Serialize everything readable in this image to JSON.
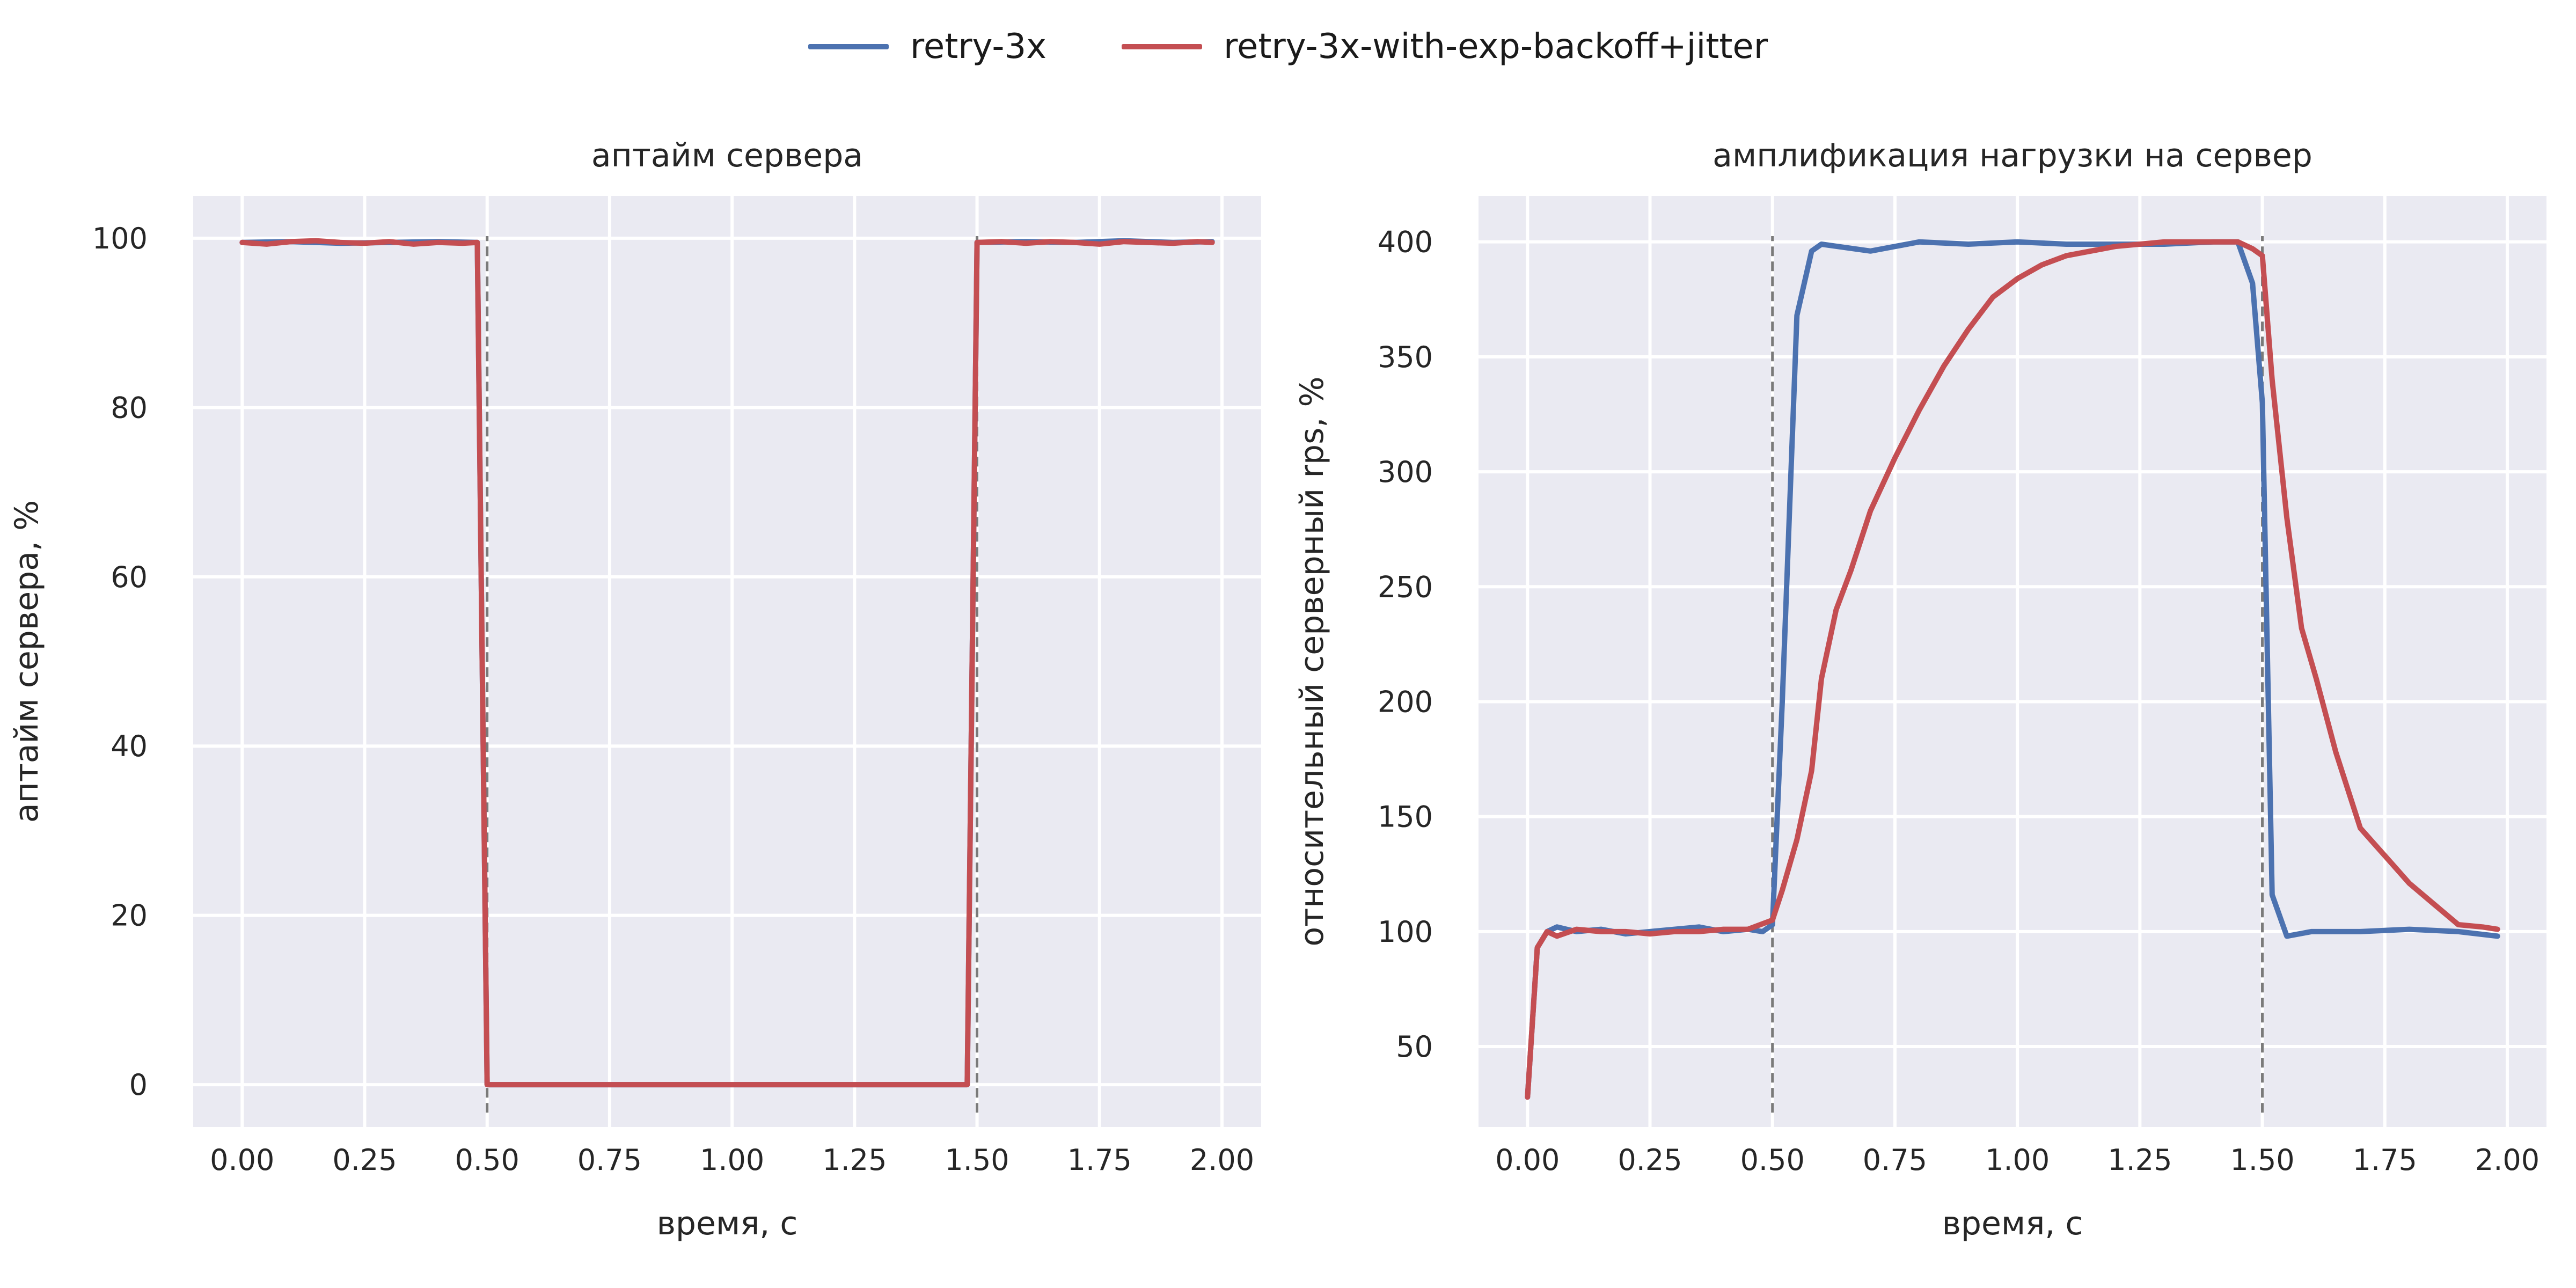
{
  "legend": {
    "items": [
      {
        "label": "retry-3x",
        "color": "#4c72b0"
      },
      {
        "label": "retry-3x-with-exp-backoff+jitter",
        "color": "#c44e52"
      }
    ],
    "placement": "top-center"
  },
  "chart_data": [
    {
      "type": "line",
      "title": "аптайм сервера",
      "xlabel": "время, с",
      "ylabel": "аптайм сервера, %",
      "xlim": [
        -0.1,
        2.08
      ],
      "ylim": [
        -5,
        105
      ],
      "xticks": [
        0.0,
        0.25,
        0.5,
        0.75,
        1.0,
        1.25,
        1.5,
        1.75,
        2.0
      ],
      "xtick_labels": [
        "0.00",
        "0.25",
        "0.50",
        "0.75",
        "1.00",
        "1.25",
        "1.50",
        "1.75",
        "2.00"
      ],
      "yticks": [
        0,
        20,
        40,
        60,
        80,
        100
      ],
      "ytick_labels": [
        "0",
        "20",
        "40",
        "60",
        "80",
        "100"
      ],
      "grid": true,
      "vlines": [
        0.5,
        1.5
      ],
      "series": [
        {
          "name": "retry-3x",
          "color": "#4c72b0",
          "x": [
            0.0,
            0.1,
            0.2,
            0.3,
            0.4,
            0.48,
            0.5,
            1.0,
            1.48,
            1.5,
            1.6,
            1.7,
            1.8,
            1.9,
            1.98
          ],
          "y": [
            99.5,
            99.6,
            99.4,
            99.5,
            99.6,
            99.5,
            0,
            0,
            0,
            99.5,
            99.6,
            99.5,
            99.7,
            99.5,
            99.6
          ]
        },
        {
          "name": "retry-3x-with-exp-backoff+jitter",
          "color": "#c44e52",
          "x": [
            0.0,
            0.05,
            0.1,
            0.15,
            0.2,
            0.25,
            0.3,
            0.35,
            0.4,
            0.45,
            0.48,
            0.5,
            1.0,
            1.48,
            1.5,
            1.55,
            1.6,
            1.65,
            1.7,
            1.75,
            1.8,
            1.85,
            1.9,
            1.95,
            1.98
          ],
          "y": [
            99.5,
            99.3,
            99.6,
            99.7,
            99.5,
            99.4,
            99.6,
            99.3,
            99.5,
            99.4,
            99.5,
            0,
            0,
            0,
            99.5,
            99.6,
            99.4,
            99.6,
            99.5,
            99.3,
            99.6,
            99.5,
            99.4,
            99.6,
            99.5
          ]
        }
      ]
    },
    {
      "type": "line",
      "title": "амплификация нагрузки на сервер",
      "xlabel": "время, с",
      "ylabel": "относительный серверный rps, %",
      "xlim": [
        -0.1,
        2.08
      ],
      "ylim": [
        15,
        420
      ],
      "xticks": [
        0.0,
        0.25,
        0.5,
        0.75,
        1.0,
        1.25,
        1.5,
        1.75,
        2.0
      ],
      "xtick_labels": [
        "0.00",
        "0.25",
        "0.50",
        "0.75",
        "1.00",
        "1.25",
        "1.50",
        "1.75",
        "2.00"
      ],
      "yticks": [
        50,
        100,
        150,
        200,
        250,
        300,
        350,
        400
      ],
      "ytick_labels": [
        "50",
        "100",
        "150",
        "200",
        "250",
        "300",
        "350",
        "400"
      ],
      "grid": true,
      "vlines": [
        0.5,
        1.5
      ],
      "series": [
        {
          "name": "retry-3x",
          "color": "#4c72b0",
          "x": [
            0.0,
            0.02,
            0.04,
            0.06,
            0.1,
            0.15,
            0.2,
            0.25,
            0.3,
            0.35,
            0.4,
            0.45,
            0.48,
            0.5,
            0.52,
            0.55,
            0.58,
            0.6,
            0.7,
            0.8,
            0.9,
            1.0,
            1.1,
            1.2,
            1.3,
            1.4,
            1.45,
            1.48,
            1.5,
            1.52,
            1.55,
            1.6,
            1.7,
            1.8,
            1.9,
            1.98
          ],
          "y": [
            28,
            93,
            100,
            102,
            100,
            101,
            99,
            100,
            101,
            102,
            100,
            101,
            100,
            103,
            200,
            368,
            396,
            399,
            396,
            400,
            399,
            400,
            399,
            399,
            399,
            400,
            400,
            382,
            330,
            116,
            98,
            100,
            100,
            101,
            100,
            98
          ]
        },
        {
          "name": "retry-3x-with-exp-backoff+jitter",
          "color": "#c44e52",
          "x": [
            0.0,
            0.02,
            0.04,
            0.06,
            0.1,
            0.15,
            0.2,
            0.25,
            0.3,
            0.35,
            0.4,
            0.45,
            0.5,
            0.52,
            0.55,
            0.58,
            0.6,
            0.63,
            0.66,
            0.7,
            0.75,
            0.8,
            0.85,
            0.9,
            0.95,
            1.0,
            1.05,
            1.1,
            1.2,
            1.3,
            1.4,
            1.45,
            1.48,
            1.5,
            1.52,
            1.55,
            1.58,
            1.61,
            1.65,
            1.7,
            1.75,
            1.8,
            1.85,
            1.9,
            1.95,
            1.98
          ],
          "y": [
            28,
            93,
            100,
            98,
            101,
            100,
            100,
            99,
            100,
            100,
            101,
            101,
            105,
            118,
            140,
            170,
            210,
            240,
            257,
            283,
            306,
            327,
            346,
            362,
            376,
            384,
            390,
            394,
            398,
            400,
            400,
            400,
            397,
            394,
            340,
            280,
            232,
            210,
            178,
            145,
            133,
            121,
            112,
            103,
            102,
            101
          ]
        }
      ]
    }
  ]
}
